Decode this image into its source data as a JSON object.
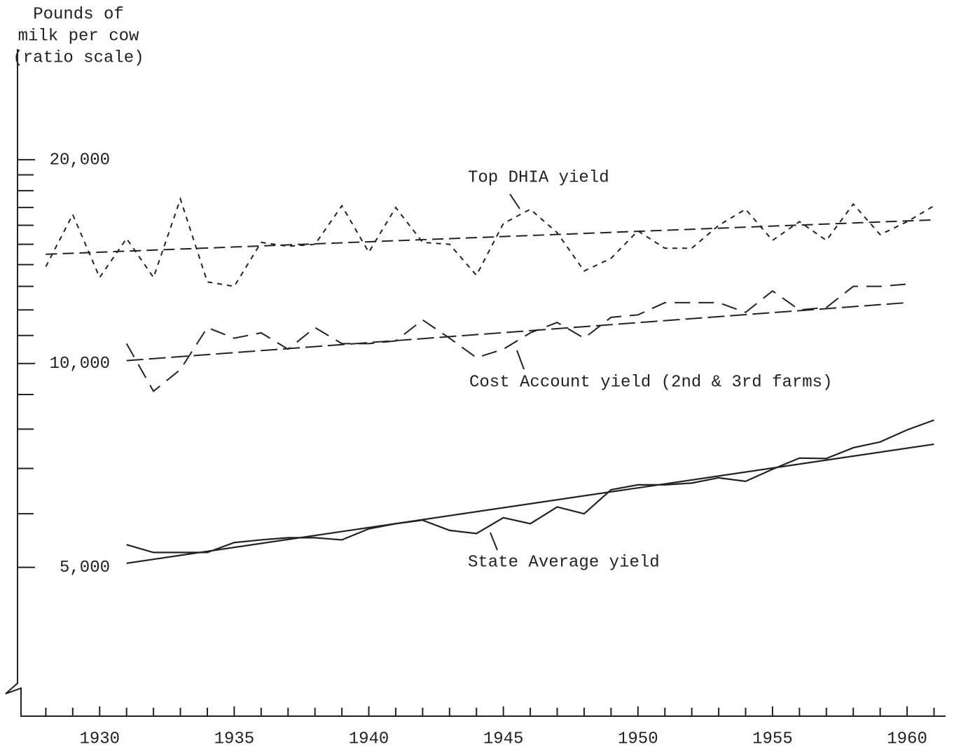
{
  "chart_data": {
    "type": "line",
    "ylabel": [
      "Pounds of",
      "milk per cow",
      "(ratio scale)"
    ],
    "log_scale_y": true,
    "xlim": [
      1927,
      1961.3
    ],
    "ylim": [
      3000,
      29000
    ],
    "xticks": [
      1930,
      1935,
      1940,
      1945,
      1950,
      1955,
      1960
    ],
    "minor_xticks": [
      1928,
      1929,
      1931,
      1932,
      1933,
      1934,
      1936,
      1937,
      1938,
      1939,
      1941,
      1942,
      1943,
      1944,
      1946,
      1947,
      1948,
      1949,
      1951,
      1952,
      1953,
      1954,
      1956,
      1957,
      1958,
      1959,
      1961
    ],
    "yticks": [
      {
        "value": 5000,
        "label": "5,000"
      },
      {
        "value": 10000,
        "label": "10,000"
      },
      {
        "value": 20000,
        "label": "20,000"
      }
    ],
    "minor_yticks": [
      6000,
      7000,
      8000,
      9000,
      11000,
      12000,
      13000,
      14000,
      15000,
      16000,
      17000,
      18000,
      19000
    ],
    "series": [
      {
        "name": "Top DHIA yield",
        "color": "#222",
        "dash": "7 7",
        "x": [
          1928,
          1929,
          1930,
          1931,
          1932,
          1933,
          1934,
          1935,
          1936,
          1937,
          1938,
          1939,
          1940,
          1941,
          1942,
          1943,
          1944,
          1945,
          1946,
          1947,
          1948,
          1949,
          1950,
          1951,
          1952,
          1953,
          1954,
          1955,
          1956,
          1957,
          1958,
          1959,
          1960,
          1961
        ],
        "values": [
          13900,
          16600,
          13400,
          15300,
          13400,
          17500,
          13200,
          13000,
          15100,
          14900,
          15000,
          17100,
          14600,
          17000,
          15100,
          15000,
          13500,
          16100,
          16900,
          15600,
          13700,
          14300,
          15700,
          14800,
          14800,
          16000,
          16900,
          15200,
          16200,
          15200,
          17200,
          15500,
          16200,
          17100
        ]
      },
      {
        "color": "#222",
        "dash": "16 8",
        "x": [
          1928,
          1961
        ],
        "values": [
          14500,
          16300
        ]
      },
      {
        "name": "Cost Account yield (2nd & 3rd farms)",
        "color": "#222",
        "dash": "22 12",
        "x": [
          1931,
          1932,
          1933,
          1934,
          1935,
          1936,
          1937,
          1938,
          1939,
          1940,
          1941,
          1942,
          1943,
          1944,
          1945,
          1946,
          1947,
          1948,
          1949,
          1950,
          1951,
          1952,
          1953,
          1954,
          1955,
          1956,
          1957,
          1958,
          1959,
          1960
        ],
        "values": [
          10700,
          9100,
          9800,
          11300,
          10900,
          11100,
          10500,
          11300,
          10700,
          10700,
          10800,
          11600,
          10900,
          10200,
          10500,
          11100,
          11500,
          10900,
          11700,
          11800,
          12300,
          12300,
          12300,
          11900,
          12800,
          12000,
          12100,
          13000,
          13000,
          13100
        ]
      },
      {
        "color": "#222",
        "dash": "24 8",
        "x": [
          1931,
          1960
        ],
        "values": [
          10100,
          12300
        ]
      },
      {
        "name": "State Average yield",
        "color": "#222",
        "dash": "none",
        "x": [
          1931,
          1932,
          1933,
          1934,
          1935,
          1936,
          1937,
          1938,
          1939,
          1940,
          1941,
          1942,
          1943,
          1944,
          1945,
          1946,
          1947,
          1948,
          1949,
          1950,
          1951,
          1952,
          1953,
          1954,
          1955,
          1956,
          1957,
          1958,
          1959,
          1960,
          1961
        ],
        "values": [
          5400,
          5260,
          5260,
          5260,
          5440,
          5490,
          5530,
          5530,
          5490,
          5700,
          5800,
          5870,
          5670,
          5610,
          5920,
          5800,
          6140,
          6000,
          6510,
          6620,
          6620,
          6660,
          6780,
          6700,
          6980,
          7250,
          7240,
          7510,
          7660,
          7980,
          8250
        ]
      },
      {
        "color": "#222",
        "dash": "none",
        "x": [
          1931,
          1961
        ],
        "values": [
          5070,
          7600
        ]
      }
    ]
  }
}
